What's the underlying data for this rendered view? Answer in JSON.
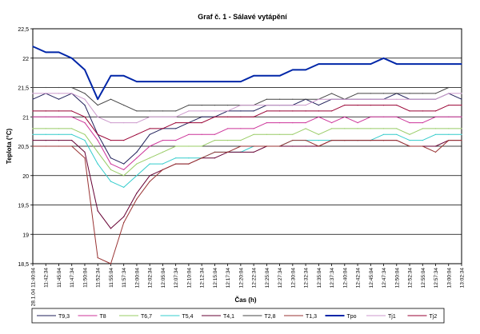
{
  "chart_data": {
    "type": "line",
    "title": "Graf č. 1 - Sálavé vytápění",
    "xlabel": "Čas (h)",
    "ylabel": "Teplota (°C)",
    "ylim": [
      18.5,
      22.5
    ],
    "yticks": [
      "18,5",
      "19",
      "19,5",
      "20",
      "20,5",
      "21",
      "21,5",
      "22",
      "22,5"
    ],
    "grid": true,
    "legend_position": "bottom",
    "x_tick_labels": [
      "28.1.04 11:40:04",
      "11:42:34",
      "11:45:04",
      "11:47:34",
      "11:50:04",
      "11:52:34",
      "11:55:04",
      "11:57:34",
      "12:00:04",
      "12:02:34",
      "12:05:04",
      "12:07:34",
      "12:10:04",
      "12:12:34",
      "12:15:04",
      "12:17:34",
      "12:20:04",
      "12:22:34",
      "12:25:04",
      "12:27:34",
      "12:30:04",
      "12:32:34",
      "12:35:04",
      "12:37:34",
      "12:40:04",
      "12:42:34",
      "12:45:04",
      "12:47:34",
      "12:50:04",
      "12:52:34",
      "12:55:04",
      "12:57:34",
      "13:00:04",
      "13:02:34"
    ],
    "series": [
      {
        "name": "T9,3",
        "color": "#1f1f5a",
        "values": [
          21.3,
          21.4,
          21.3,
          21.4,
          21.2,
          20.7,
          20.3,
          20.2,
          20.4,
          20.7,
          20.8,
          20.8,
          20.9,
          21.0,
          21.0,
          21.1,
          21.1,
          21.1,
          21.2,
          21.2,
          21.2,
          21.3,
          21.2,
          21.3,
          21.3,
          21.3,
          21.3,
          21.3,
          21.4,
          21.3,
          21.3,
          21.3,
          21.4,
          21.3
        ]
      },
      {
        "name": "T8",
        "color": "#cc3399",
        "values": [
          21.0,
          21.0,
          21.0,
          21.0,
          20.9,
          20.6,
          20.2,
          20.1,
          20.3,
          20.5,
          20.6,
          20.6,
          20.7,
          20.7,
          20.7,
          20.8,
          20.8,
          20.8,
          20.9,
          20.9,
          20.9,
          20.9,
          21.0,
          20.9,
          21.0,
          20.9,
          21.0,
          21.0,
          21.0,
          20.9,
          20.9,
          21.0,
          21.0,
          21.0
        ]
      },
      {
        "name": "T6,7",
        "color": "#99cc66",
        "values": [
          20.8,
          20.8,
          20.8,
          20.8,
          20.7,
          20.4,
          20.1,
          20.0,
          20.2,
          20.3,
          20.4,
          20.5,
          20.5,
          20.5,
          20.6,
          20.6,
          20.6,
          20.7,
          20.7,
          20.7,
          20.7,
          20.8,
          20.7,
          20.8,
          20.8,
          20.8,
          20.8,
          20.8,
          20.8,
          20.7,
          20.8,
          20.8,
          20.8,
          20.8
        ]
      },
      {
        "name": "T5,4",
        "color": "#33cccc",
        "values": [
          20.7,
          20.7,
          20.7,
          20.7,
          20.6,
          20.2,
          19.9,
          19.8,
          20.0,
          20.2,
          20.2,
          20.3,
          20.3,
          20.3,
          20.4,
          20.4,
          20.4,
          20.5,
          20.5,
          20.5,
          20.6,
          20.6,
          20.6,
          20.6,
          20.6,
          20.6,
          20.6,
          20.7,
          20.7,
          20.6,
          20.6,
          20.7,
          20.7,
          20.7
        ]
      },
      {
        "name": "T4,1",
        "color": "#660033",
        "values": [
          20.6,
          20.6,
          20.6,
          20.6,
          20.4,
          19.4,
          19.1,
          19.3,
          19.7,
          20.0,
          20.1,
          20.2,
          20.2,
          20.3,
          20.3,
          20.4,
          20.4,
          20.4,
          20.5,
          20.5,
          20.5,
          20.5,
          20.5,
          20.6,
          20.6,
          20.6,
          20.6,
          20.6,
          20.6,
          20.5,
          20.5,
          20.5,
          20.6,
          20.6
        ]
      },
      {
        "name": "T2,8",
        "color": "#444444",
        "values": [
          21.5,
          21.5,
          21.5,
          21.5,
          21.4,
          21.2,
          21.3,
          21.2,
          21.1,
          21.1,
          21.1,
          21.1,
          21.2,
          21.2,
          21.2,
          21.2,
          21.2,
          21.2,
          21.3,
          21.3,
          21.3,
          21.3,
          21.3,
          21.4,
          21.3,
          21.4,
          21.4,
          21.4,
          21.4,
          21.4,
          21.4,
          21.4,
          21.5,
          21.5
        ]
      },
      {
        "name": "T1,3",
        "color": "#993333",
        "values": [
          20.5,
          20.5,
          20.5,
          20.5,
          20.3,
          18.6,
          18.5,
          19.2,
          19.6,
          19.9,
          20.1,
          20.2,
          20.2,
          20.3,
          20.4,
          20.4,
          20.5,
          20.5,
          20.5,
          20.5,
          20.6,
          20.6,
          20.5,
          20.6,
          20.6,
          20.6,
          20.6,
          20.6,
          20.6,
          20.5,
          20.5,
          20.4,
          20.6,
          20.6
        ]
      },
      {
        "name": "Tpo",
        "color": "#0026a8",
        "values": [
          22.2,
          22.1,
          22.1,
          22.0,
          21.8,
          21.3,
          21.7,
          21.7,
          21.6,
          21.6,
          21.6,
          21.6,
          21.6,
          21.6,
          21.6,
          21.6,
          21.6,
          21.7,
          21.7,
          21.7,
          21.8,
          21.8,
          21.9,
          21.9,
          21.9,
          21.9,
          21.9,
          22.0,
          21.9,
          21.9,
          21.9,
          21.9,
          21.9,
          21.9
        ]
      },
      {
        "name": "Tj1",
        "color": "#cc99cc",
        "values": [
          21.4,
          21.4,
          21.4,
          21.4,
          21.3,
          21.0,
          20.9,
          20.9,
          20.9,
          21.0,
          21.0,
          21.0,
          21.1,
          21.1,
          21.1,
          21.1,
          21.2,
          21.2,
          21.2,
          21.2,
          21.2,
          21.2,
          21.3,
          21.3,
          21.3,
          21.3,
          21.3,
          21.3,
          21.3,
          21.3,
          21.3,
          21.3,
          21.4,
          21.4
        ]
      },
      {
        "name": "Tj2",
        "color": "#990033",
        "values": [
          21.1,
          21.1,
          21.1,
          21.1,
          21.0,
          20.7,
          20.6,
          20.6,
          20.7,
          20.8,
          20.8,
          20.9,
          20.9,
          20.9,
          21.0,
          21.0,
          21.0,
          21.0,
          21.1,
          21.1,
          21.1,
          21.1,
          21.1,
          21.1,
          21.2,
          21.2,
          21.2,
          21.2,
          21.2,
          21.1,
          21.1,
          21.1,
          21.2,
          21.2
        ]
      }
    ]
  }
}
